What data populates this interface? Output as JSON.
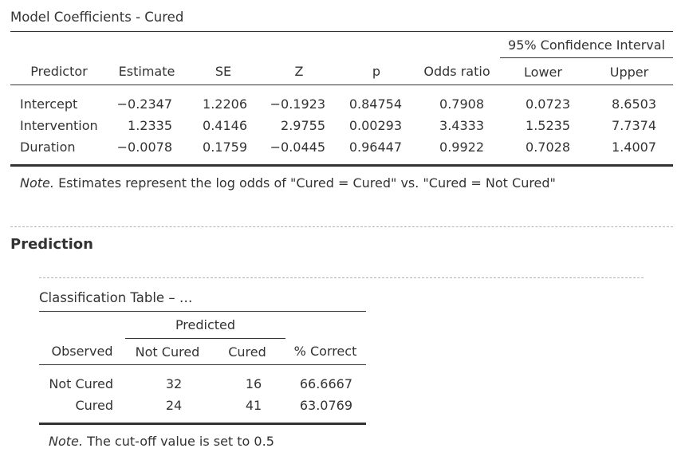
{
  "coef_table": {
    "title": "Model Coefficients - Cured",
    "ci_header": "95% Confidence Interval",
    "columns": [
      "Predictor",
      "Estimate",
      "SE",
      "Z",
      "p",
      "Odds ratio",
      "Lower",
      "Upper"
    ],
    "rows": [
      [
        "Intercept",
        "−0.2347",
        "1.2206",
        "−0.1923",
        "0.84754",
        "0.7908",
        "0.0723",
        "8.6503"
      ],
      [
        "Intervention",
        "1.2335",
        "0.4146",
        "2.9755",
        "0.00293",
        "3.4333",
        "1.5235",
        "7.7374"
      ],
      [
        "Duration",
        "−0.0078",
        "0.1759",
        "−0.0445",
        "0.96447",
        "0.9922",
        "0.7028",
        "1.4007"
      ]
    ],
    "note_label": "Note.",
    "note_text": "Estimates represent the log odds of \"Cured = Cured\" vs. \"Cured = Not Cured\""
  },
  "prediction": {
    "heading": "Prediction",
    "table": {
      "title": "Classification Table – …",
      "predicted_header": "Predicted",
      "columns": [
        "Observed",
        "Not Cured",
        "Cured",
        "% Correct"
      ],
      "rows": [
        [
          "Not Cured",
          "32",
          "16",
          "66.6667"
        ],
        [
          "Cured",
          "24",
          "41",
          "63.0769"
        ]
      ],
      "note_label": "Note.",
      "note_text": "The cut-off value is set to 0.5"
    }
  }
}
